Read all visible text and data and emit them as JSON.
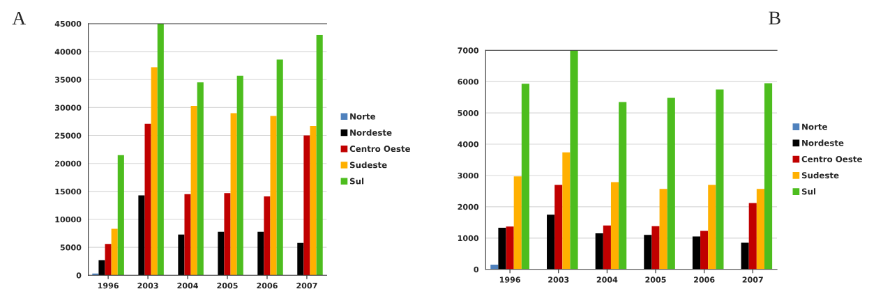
{
  "chart_data": [
    {
      "type": "bar",
      "title": "A",
      "categories": [
        "1996",
        "2003",
        "2004",
        "2005",
        "2006",
        "2007"
      ],
      "ylim": [
        0,
        45000
      ],
      "yticks": [
        0,
        5000,
        10000,
        15000,
        20000,
        25000,
        30000,
        35000,
        40000,
        45000
      ],
      "grid": "y",
      "legend": "right",
      "series": [
        {
          "name": "Norte",
          "color": "#4f81bd",
          "values": [
            300,
            0,
            0,
            0,
            0,
            0
          ]
        },
        {
          "name": "Nordeste",
          "color": "#000000",
          "values": [
            2700,
            14300,
            7300,
            7800,
            7800,
            5800
          ]
        },
        {
          "name": "Centro Oeste",
          "color": "#c00000",
          "values": [
            5600,
            27100,
            14500,
            14700,
            14100,
            25000
          ]
        },
        {
          "name": "Sudeste",
          "color": "#ffb000",
          "values": [
            8300,
            37200,
            30300,
            29000,
            28500,
            26700
          ]
        },
        {
          "name": "Sul",
          "color": "#4dbd1e",
          "values": [
            21500,
            45000,
            34500,
            35700,
            38600,
            43000
          ]
        }
      ]
    },
    {
      "type": "bar",
      "title": "B",
      "categories": [
        "1996",
        "2003",
        "2004",
        "2005",
        "2006",
        "2007"
      ],
      "ylim": [
        0,
        7000
      ],
      "yticks": [
        0,
        1000,
        2000,
        3000,
        4000,
        5000,
        6000,
        7000
      ],
      "grid": "y",
      "legend": "right",
      "series": [
        {
          "name": "Norte",
          "color": "#4f81bd",
          "values": [
            150,
            0,
            0,
            0,
            0,
            0
          ]
        },
        {
          "name": "Nordeste",
          "color": "#000000",
          "values": [
            1330,
            1750,
            1150,
            1100,
            1050,
            850
          ]
        },
        {
          "name": "Centro Oeste",
          "color": "#c00000",
          "values": [
            1370,
            2700,
            1400,
            1380,
            1230,
            2120
          ]
        },
        {
          "name": "Sudeste",
          "color": "#ffb000",
          "values": [
            2970,
            3740,
            2790,
            2570,
            2700,
            2570
          ]
        },
        {
          "name": "Sul",
          "color": "#4dbd1e",
          "values": [
            5930,
            7000,
            5350,
            5480,
            5750,
            5950
          ]
        }
      ]
    }
  ]
}
